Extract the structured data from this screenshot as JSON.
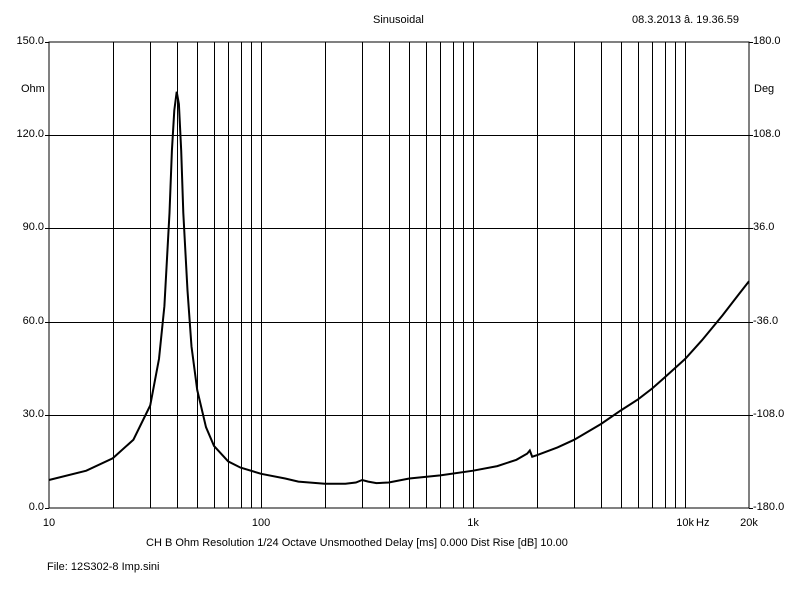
{
  "header": {
    "mode": "Sinusoidal",
    "timestamp": "08.3.2013 â. 19.36.59"
  },
  "footer": {
    "info": "CH B   Ohm   Resolution 1/24 Octave   Unsmoothed   Delay [ms] 0.000   Dist Rise [dB] 10.00",
    "file": "File: 12S302-8 Imp.sini"
  },
  "chart_data": {
    "type": "line",
    "x_scale": "log",
    "xlim": [
      10,
      20000
    ],
    "ylim_left": [
      0,
      150
    ],
    "ylim_right": [
      -180,
      180
    ],
    "left_unit": "Ohm",
    "right_unit": "Deg",
    "x_unit": "Hz",
    "y_ticks_left": [
      "0.0",
      "30.0",
      "60.0",
      "90.0",
      "120.0",
      "150.0"
    ],
    "y_ticks_right": [
      "-180.0",
      "-108.0",
      "-36.0",
      "36.0",
      "108.0",
      "180.0"
    ],
    "x_tick_labels": [
      {
        "value": 10,
        "label": "10"
      },
      {
        "value": 100,
        "label": "100"
      },
      {
        "value": 1000,
        "label": "1k"
      },
      {
        "value": 10000,
        "label": "10k"
      },
      {
        "value": 20000,
        "label": "20k"
      }
    ],
    "grid": true,
    "series": [
      {
        "x": [
          10,
          15,
          20,
          25,
          30,
          33,
          35,
          37,
          38,
          39,
          40,
          41,
          42,
          43,
          45,
          47,
          50,
          55,
          60,
          70,
          80,
          100,
          130,
          150,
          200,
          250,
          280,
          300,
          320,
          350,
          400,
          500,
          700,
          1000,
          1300,
          1600,
          1800,
          1850,
          1900,
          2000,
          2500,
          3000,
          4000,
          5000,
          6000,
          7000,
          8000,
          10000,
          12000,
          15000,
          18000,
          20000
        ],
        "y": [
          9,
          12,
          16,
          22,
          33,
          48,
          65,
          95,
          115,
          128,
          134,
          130,
          115,
          95,
          70,
          52,
          38,
          26,
          20,
          15,
          13,
          11,
          9.5,
          8.5,
          7.8,
          7.8,
          8.2,
          9,
          8.5,
          8,
          8.2,
          9.5,
          10.5,
          12,
          13.5,
          15.5,
          17.5,
          18.5,
          16.5,
          17,
          19.5,
          22,
          27,
          31.5,
          35,
          38.5,
          42,
          48,
          54,
          62,
          69,
          73
        ]
      }
    ]
  }
}
